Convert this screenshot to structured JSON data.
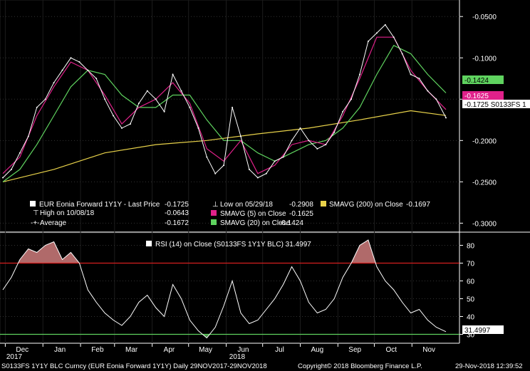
{
  "colors": {
    "background": "#000000",
    "price": "#ffffff",
    "sma5": "#e0218a",
    "sma20": "#5fd35f",
    "sma200": "#e8d24a",
    "rsi": "#ffffff",
    "overbought": "#d61f1f",
    "oversold": "#5fd35f",
    "overbought_fill": "#b06a6a",
    "oversold_fill": "#4a8f4a"
  },
  "upper_legend": {
    "price_label": "EUR Eonia Forward 1Y1Y - Last Price",
    "price_value": "-0.1725",
    "high_label": "High on 10/08/18",
    "high_value": "-0.0643",
    "average_label": "Average",
    "average_value": "-0.1672",
    "low_label": "Low on 05/29/18",
    "low_value": "-0.2908",
    "sma5_label": "SMAVG (5)  on Close",
    "sma5_value": "-0.1625",
    "sma20_label": "SMAVG (20)  on Close",
    "sma20_value": "-0.1424",
    "sma200_label": "SMAVG (200)  on Close",
    "sma200_value": "-0.1697"
  },
  "tags": {
    "sma20": "-0.1424",
    "sma5": "-0.1625",
    "last": "-0.1725 S0133FS 1",
    "rsi": "31.4997"
  },
  "rsi_legend": "RSI (14)  on Close (S0133FS 1Y1Y BLC) 31.4997",
  "footer": {
    "ticker": "S0133FS 1Y1Y BLC Curncy (EUR Eonia Forward 1Y1Y)  Daily 29NOV2017-29NOV2018",
    "copyright": "Copyright© 2018 Bloomberg Finance L.P.",
    "timestamp": "29-Nov-2018 12:39:52"
  },
  "chart_data": [
    {
      "type": "line",
      "panel": "price",
      "y_ticks": [
        "-0.0500",
        "-0.1000",
        "-0.1500",
        "-0.2000",
        "-0.2500",
        "-0.3000"
      ],
      "ylim": [
        -0.31,
        -0.03
      ],
      "x_ticks": [
        "Dec",
        "Jan",
        "Feb",
        "Mar",
        "Apr",
        "May",
        "Jun",
        "Jul",
        "Aug",
        "Sep",
        "Oct",
        "Nov"
      ],
      "x_sublabels": [
        "2017",
        "2018"
      ],
      "series": [
        {
          "name": "EUR Eonia Forward 1Y1Y - Last Price",
          "x": [
            "2017-11-29",
            "2017-12-06",
            "2017-12-13",
            "2017-12-20",
            "2017-12-27",
            "2018-01-03",
            "2018-01-10",
            "2018-01-17",
            "2018-01-24",
            "2018-01-31",
            "2018-02-07",
            "2018-02-14",
            "2018-02-21",
            "2018-02-28",
            "2018-03-07",
            "2018-03-14",
            "2018-03-21",
            "2018-03-28",
            "2018-04-04",
            "2018-04-11",
            "2018-04-18",
            "2018-04-25",
            "2018-05-02",
            "2018-05-09",
            "2018-05-16",
            "2018-05-23",
            "2018-05-30",
            "2018-06-06",
            "2018-06-13",
            "2018-06-20",
            "2018-06-27",
            "2018-07-04",
            "2018-07-11",
            "2018-07-18",
            "2018-07-25",
            "2018-08-01",
            "2018-08-08",
            "2018-08-15",
            "2018-08-22",
            "2018-08-29",
            "2018-09-05",
            "2018-09-12",
            "2018-09-19",
            "2018-09-26",
            "2018-10-03",
            "2018-10-10",
            "2018-10-17",
            "2018-10-24",
            "2018-10-31",
            "2018-11-07",
            "2018-11-14",
            "2018-11-21",
            "2018-11-29"
          ],
          "values": [
            -0.245,
            -0.235,
            -0.215,
            -0.195,
            -0.16,
            -0.15,
            -0.13,
            -0.115,
            -0.1,
            -0.105,
            -0.115,
            -0.125,
            -0.15,
            -0.17,
            -0.185,
            -0.18,
            -0.155,
            -0.14,
            -0.15,
            -0.165,
            -0.12,
            -0.14,
            -0.16,
            -0.185,
            -0.22,
            -0.24,
            -0.23,
            -0.16,
            -0.195,
            -0.235,
            -0.245,
            -0.24,
            -0.225,
            -0.22,
            -0.2,
            -0.185,
            -0.2,
            -0.21,
            -0.205,
            -0.19,
            -0.165,
            -0.15,
            -0.12,
            -0.08,
            -0.07,
            -0.06,
            -0.075,
            -0.095,
            -0.12,
            -0.125,
            -0.14,
            -0.15,
            -0.1725
          ]
        },
        {
          "name": "SMAVG (5)",
          "x": [
            "2017-11-29",
            "2017-12-13",
            "2017-12-27",
            "2018-01-10",
            "2018-01-24",
            "2018-02-07",
            "2018-02-21",
            "2018-03-07",
            "2018-03-21",
            "2018-04-04",
            "2018-04-18",
            "2018-05-02",
            "2018-05-16",
            "2018-05-30",
            "2018-06-13",
            "2018-06-27",
            "2018-07-11",
            "2018-07-25",
            "2018-08-08",
            "2018-08-22",
            "2018-09-05",
            "2018-09-19",
            "2018-10-03",
            "2018-10-17",
            "2018-10-31",
            "2018-11-14",
            "2018-11-29"
          ],
          "values": [
            -0.24,
            -0.22,
            -0.17,
            -0.135,
            -0.105,
            -0.115,
            -0.145,
            -0.18,
            -0.16,
            -0.15,
            -0.13,
            -0.155,
            -0.21,
            -0.225,
            -0.2,
            -0.24,
            -0.23,
            -0.205,
            -0.2,
            -0.205,
            -0.17,
            -0.125,
            -0.075,
            -0.075,
            -0.115,
            -0.14,
            -0.1625
          ]
        },
        {
          "name": "SMAVG (20)",
          "x": [
            "2017-11-29",
            "2017-12-13",
            "2017-12-27",
            "2018-01-10",
            "2018-01-24",
            "2018-02-07",
            "2018-02-21",
            "2018-03-07",
            "2018-03-21",
            "2018-04-04",
            "2018-04-18",
            "2018-05-02",
            "2018-05-16",
            "2018-05-30",
            "2018-06-13",
            "2018-06-27",
            "2018-07-11",
            "2018-07-25",
            "2018-08-08",
            "2018-08-22",
            "2018-09-05",
            "2018-09-19",
            "2018-10-03",
            "2018-10-17",
            "2018-10-31",
            "2018-11-14",
            "2018-11-29"
          ],
          "values": [
            -0.25,
            -0.235,
            -0.205,
            -0.17,
            -0.135,
            -0.115,
            -0.12,
            -0.145,
            -0.16,
            -0.16,
            -0.145,
            -0.145,
            -0.175,
            -0.2,
            -0.2,
            -0.215,
            -0.225,
            -0.215,
            -0.205,
            -0.2,
            -0.185,
            -0.16,
            -0.12,
            -0.085,
            -0.095,
            -0.12,
            -0.1424
          ]
        },
        {
          "name": "SMAVG (200)",
          "x": [
            "2017-11-29",
            "2018-01-10",
            "2018-02-21",
            "2018-04-04",
            "2018-05-16",
            "2018-06-27",
            "2018-08-08",
            "2018-09-19",
            "2018-10-31",
            "2018-11-29"
          ],
          "values": [
            -0.25,
            -0.235,
            -0.215,
            -0.205,
            -0.2,
            -0.192,
            -0.185,
            -0.175,
            -0.164,
            -0.1697
          ]
        }
      ]
    },
    {
      "type": "line",
      "panel": "rsi",
      "title": "RSI (14)  on Close (S0133FS 1Y1Y BLC) 31.4997",
      "y_ticks": [
        "80",
        "70",
        "60",
        "50",
        "40",
        "30"
      ],
      "ylim": [
        25,
        87
      ],
      "overbought": 70,
      "oversold": 30,
      "series": [
        {
          "name": "RSI (14)",
          "x": [
            "2017-11-29",
            "2017-12-06",
            "2017-12-13",
            "2017-12-20",
            "2017-12-27",
            "2018-01-03",
            "2018-01-10",
            "2018-01-17",
            "2018-01-24",
            "2018-01-31",
            "2018-02-07",
            "2018-02-14",
            "2018-02-21",
            "2018-02-28",
            "2018-03-07",
            "2018-03-14",
            "2018-03-21",
            "2018-03-28",
            "2018-04-04",
            "2018-04-11",
            "2018-04-18",
            "2018-04-25",
            "2018-05-02",
            "2018-05-09",
            "2018-05-16",
            "2018-05-23",
            "2018-05-30",
            "2018-06-06",
            "2018-06-13",
            "2018-06-20",
            "2018-06-27",
            "2018-07-04",
            "2018-07-11",
            "2018-07-18",
            "2018-07-25",
            "2018-08-01",
            "2018-08-08",
            "2018-08-15",
            "2018-08-22",
            "2018-08-29",
            "2018-09-05",
            "2018-09-12",
            "2018-09-19",
            "2018-09-26",
            "2018-10-03",
            "2018-10-10",
            "2018-10-17",
            "2018-10-24",
            "2018-10-31",
            "2018-11-07",
            "2018-11-14",
            "2018-11-21",
            "2018-11-29"
          ],
          "values": [
            55,
            62,
            72,
            78,
            76,
            80,
            82,
            72,
            76,
            70,
            55,
            48,
            42,
            38,
            35,
            40,
            48,
            52,
            45,
            40,
            58,
            50,
            38,
            32,
            28,
            34,
            46,
            60,
            42,
            36,
            38,
            44,
            50,
            58,
            68,
            60,
            48,
            42,
            44,
            50,
            62,
            70,
            80,
            83,
            68,
            60,
            55,
            48,
            42,
            44,
            38,
            34,
            31.5
          ]
        }
      ]
    }
  ]
}
